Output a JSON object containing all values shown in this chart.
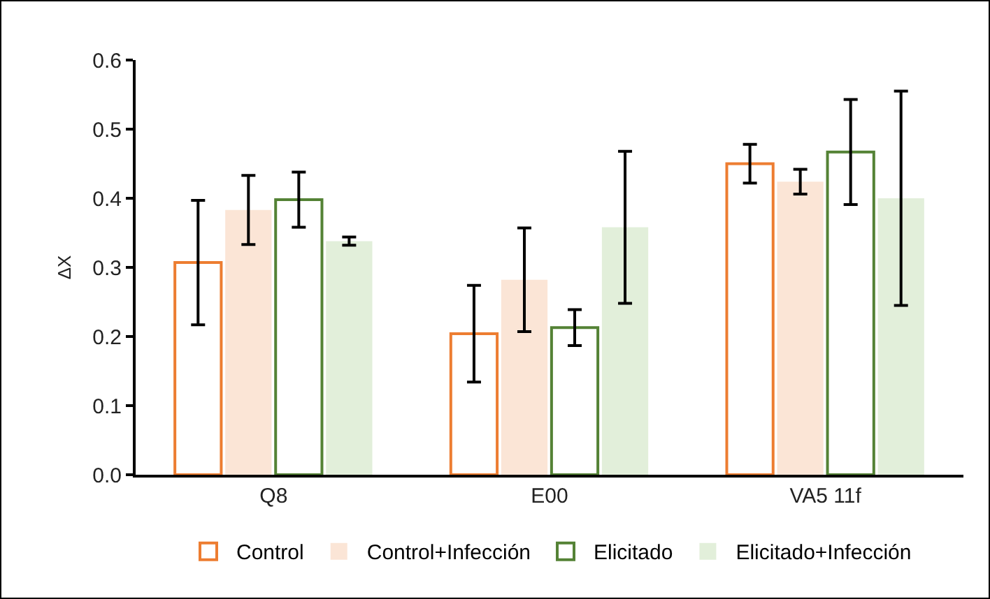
{
  "chart_data": {
    "type": "bar",
    "ylabel": "ΔX",
    "categories": [
      "Q8",
      "E00",
      "VA5 11f"
    ],
    "series": [
      {
        "name": "Control",
        "color": "#ed7d31",
        "values": [
          0.307,
          0.204,
          0.45
        ],
        "errors": [
          0.09,
          0.07,
          0.028
        ]
      },
      {
        "name": "Control+Infección",
        "color": "#fbe5d6",
        "values": [
          0.383,
          0.282,
          0.424
        ],
        "errors": [
          0.05,
          0.075,
          0.018
        ]
      },
      {
        "name": "Elicitado",
        "color": "#548235",
        "values": [
          0.398,
          0.213,
          0.467
        ],
        "errors": [
          0.04,
          0.026,
          0.076
        ]
      },
      {
        "name": "Elicitado+Infección",
        "color": "#e2efda",
        "values": [
          0.338,
          0.358,
          0.4
        ],
        "errors": [
          0.006,
          0.11,
          0.155
        ]
      }
    ],
    "ylim": [
      0,
      0.6
    ],
    "yticks": [
      {
        "value": 0,
        "label": "0.0"
      },
      0.1,
      0.2,
      0.3,
      0.4,
      0.5,
      0.6
    ],
    "grid": false,
    "legend": "bottom"
  }
}
